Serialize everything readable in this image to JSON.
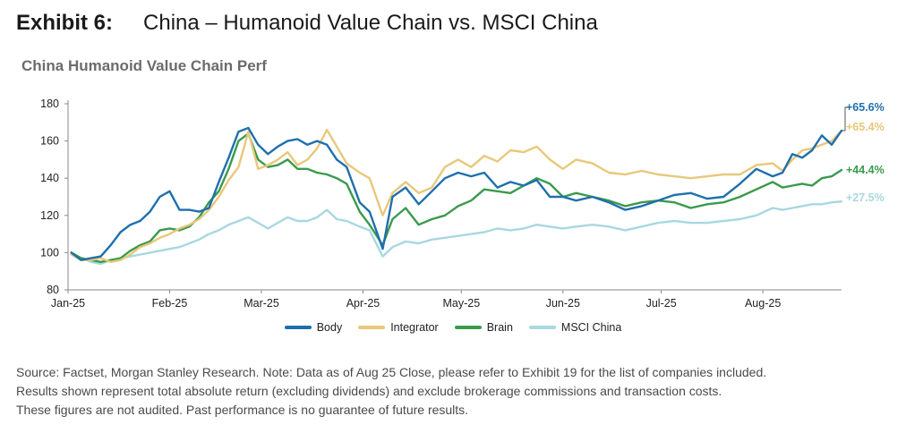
{
  "exhibit": {
    "label": "Exhibit 6:",
    "title": "China – Humanoid Value Chain vs. MSCI China"
  },
  "chart_title": "China Humanoid Value Chain Perf",
  "source_lines": [
    "Source: Factset, Morgan Stanley Research. Note: Data as of Aug 25 Close, please refer to Exhibit 19 for the list of companies included.",
    "Results shown represent total absolute return (excluding dividends) and exclude brokerage commissions and transaction costs.",
    "These figures are not audited. Past performance is no guarantee of future results."
  ],
  "chart_data": {
    "type": "line",
    "title": "China Humanoid Value Chain Perf",
    "xlabel": "",
    "ylabel": "",
    "ylim": [
      80,
      180
    ],
    "yticks": [
      80,
      100,
      120,
      140,
      160,
      180
    ],
    "xlim": [
      "2025-01-01",
      "2025-08-25"
    ],
    "xticks": [
      {
        "label": "Jan-25",
        "date": "2025-01-01"
      },
      {
        "label": "Feb-25",
        "date": "2025-02-01"
      },
      {
        "label": "Mar-25",
        "date": "2025-03-01"
      },
      {
        "label": "Apr-25",
        "date": "2025-04-01"
      },
      {
        "label": "May-25",
        "date": "2025-05-01"
      },
      {
        "label": "Jun-25",
        "date": "2025-06-01"
      },
      {
        "label": "Jul-25",
        "date": "2025-07-01"
      },
      {
        "label": "Aug-25",
        "date": "2025-08-01"
      }
    ],
    "grid": false,
    "legend": "bottom",
    "series": [
      {
        "name": "Body",
        "color": "#1f6fad",
        "end_label": "+65.6%",
        "points": [
          [
            "2025-01-02",
            100
          ],
          [
            "2025-01-05",
            96
          ],
          [
            "2025-01-08",
            97
          ],
          [
            "2025-01-11",
            98
          ],
          [
            "2025-01-14",
            104
          ],
          [
            "2025-01-17",
            111
          ],
          [
            "2025-01-20",
            115
          ],
          [
            "2025-01-23",
            117
          ],
          [
            "2025-01-26",
            122
          ],
          [
            "2025-01-29",
            130
          ],
          [
            "2025-02-01",
            133
          ],
          [
            "2025-02-04",
            123
          ],
          [
            "2025-02-07",
            123
          ],
          [
            "2025-02-10",
            122
          ],
          [
            "2025-02-13",
            124
          ],
          [
            "2025-02-16",
            138
          ],
          [
            "2025-02-19",
            151
          ],
          [
            "2025-02-22",
            165
          ],
          [
            "2025-02-25",
            167
          ],
          [
            "2025-02-28",
            158
          ],
          [
            "2025-03-03",
            153
          ],
          [
            "2025-03-06",
            157
          ],
          [
            "2025-03-09",
            160
          ],
          [
            "2025-03-12",
            161
          ],
          [
            "2025-03-15",
            158
          ],
          [
            "2025-03-18",
            160
          ],
          [
            "2025-03-21",
            158
          ],
          [
            "2025-03-24",
            150
          ],
          [
            "2025-03-27",
            146
          ],
          [
            "2025-03-31",
            127
          ],
          [
            "2025-04-03",
            122
          ],
          [
            "2025-04-07",
            102
          ],
          [
            "2025-04-10",
            130
          ],
          [
            "2025-04-14",
            135
          ],
          [
            "2025-04-18",
            126
          ],
          [
            "2025-04-22",
            133
          ],
          [
            "2025-04-26",
            140
          ],
          [
            "2025-04-30",
            143
          ],
          [
            "2025-05-04",
            141
          ],
          [
            "2025-05-08",
            143
          ],
          [
            "2025-05-12",
            135
          ],
          [
            "2025-05-16",
            138
          ],
          [
            "2025-05-20",
            136
          ],
          [
            "2025-05-24",
            139
          ],
          [
            "2025-05-28",
            130
          ],
          [
            "2025-06-01",
            130
          ],
          [
            "2025-06-05",
            128
          ],
          [
            "2025-06-10",
            130
          ],
          [
            "2025-06-15",
            127
          ],
          [
            "2025-06-20",
            123
          ],
          [
            "2025-06-25",
            125
          ],
          [
            "2025-06-30",
            128
          ],
          [
            "2025-07-05",
            131
          ],
          [
            "2025-07-10",
            132
          ],
          [
            "2025-07-15",
            129
          ],
          [
            "2025-07-20",
            130
          ],
          [
            "2025-07-25",
            137
          ],
          [
            "2025-07-30",
            145
          ],
          [
            "2025-08-04",
            141
          ],
          [
            "2025-08-07",
            143
          ],
          [
            "2025-08-10",
            153
          ],
          [
            "2025-08-13",
            151
          ],
          [
            "2025-08-16",
            155
          ],
          [
            "2025-08-19",
            163
          ],
          [
            "2025-08-22",
            158
          ],
          [
            "2025-08-25",
            165.6
          ]
        ]
      },
      {
        "name": "Integrator",
        "color": "#e8c87a",
        "end_label": "+65.4%",
        "points": [
          [
            "2025-01-02",
            99
          ],
          [
            "2025-01-05",
            96
          ],
          [
            "2025-01-08",
            96
          ],
          [
            "2025-01-11",
            97
          ],
          [
            "2025-01-14",
            95
          ],
          [
            "2025-01-17",
            96
          ],
          [
            "2025-01-20",
            99
          ],
          [
            "2025-01-23",
            103
          ],
          [
            "2025-01-26",
            105
          ],
          [
            "2025-01-29",
            108
          ],
          [
            "2025-02-01",
            110
          ],
          [
            "2025-02-04",
            113
          ],
          [
            "2025-02-07",
            115
          ],
          [
            "2025-02-10",
            118
          ],
          [
            "2025-02-13",
            123
          ],
          [
            "2025-02-16",
            130
          ],
          [
            "2025-02-19",
            139
          ],
          [
            "2025-02-22",
            146
          ],
          [
            "2025-02-25",
            165
          ],
          [
            "2025-02-28",
            145
          ],
          [
            "2025-03-03",
            147
          ],
          [
            "2025-03-06",
            150
          ],
          [
            "2025-03-09",
            154
          ],
          [
            "2025-03-12",
            147
          ],
          [
            "2025-03-15",
            150
          ],
          [
            "2025-03-18",
            156
          ],
          [
            "2025-03-21",
            166
          ],
          [
            "2025-03-24",
            157
          ],
          [
            "2025-03-27",
            148
          ],
          [
            "2025-03-31",
            143
          ],
          [
            "2025-04-03",
            140
          ],
          [
            "2025-04-07",
            120
          ],
          [
            "2025-04-10",
            132
          ],
          [
            "2025-04-14",
            138
          ],
          [
            "2025-04-18",
            132
          ],
          [
            "2025-04-22",
            135
          ],
          [
            "2025-04-26",
            146
          ],
          [
            "2025-04-30",
            150
          ],
          [
            "2025-05-04",
            146
          ],
          [
            "2025-05-08",
            152
          ],
          [
            "2025-05-12",
            149
          ],
          [
            "2025-05-16",
            155
          ],
          [
            "2025-05-20",
            154
          ],
          [
            "2025-05-24",
            157
          ],
          [
            "2025-05-28",
            150
          ],
          [
            "2025-06-01",
            145
          ],
          [
            "2025-06-05",
            150
          ],
          [
            "2025-06-10",
            148
          ],
          [
            "2025-06-15",
            143
          ],
          [
            "2025-06-20",
            142
          ],
          [
            "2025-06-25",
            144
          ],
          [
            "2025-06-30",
            142
          ],
          [
            "2025-07-05",
            141
          ],
          [
            "2025-07-10",
            140
          ],
          [
            "2025-07-15",
            141
          ],
          [
            "2025-07-20",
            142
          ],
          [
            "2025-07-25",
            142
          ],
          [
            "2025-07-30",
            147
          ],
          [
            "2025-08-04",
            148
          ],
          [
            "2025-08-07",
            144
          ],
          [
            "2025-08-10",
            150
          ],
          [
            "2025-08-13",
            155
          ],
          [
            "2025-08-16",
            156
          ],
          [
            "2025-08-19",
            158
          ],
          [
            "2025-08-22",
            160
          ],
          [
            "2025-08-25",
            165.4
          ]
        ]
      },
      {
        "name": "Brain",
        "color": "#3a9a4c",
        "end_label": "+44.4%",
        "points": [
          [
            "2025-01-02",
            100
          ],
          [
            "2025-01-05",
            97
          ],
          [
            "2025-01-08",
            96
          ],
          [
            "2025-01-11",
            95
          ],
          [
            "2025-01-14",
            96
          ],
          [
            "2025-01-17",
            97
          ],
          [
            "2025-01-20",
            101
          ],
          [
            "2025-01-23",
            104
          ],
          [
            "2025-01-26",
            106
          ],
          [
            "2025-01-29",
            112
          ],
          [
            "2025-02-01",
            113
          ],
          [
            "2025-02-04",
            112
          ],
          [
            "2025-02-07",
            114
          ],
          [
            "2025-02-10",
            119
          ],
          [
            "2025-02-13",
            127
          ],
          [
            "2025-02-16",
            133
          ],
          [
            "2025-02-19",
            145
          ],
          [
            "2025-02-22",
            160
          ],
          [
            "2025-02-25",
            164
          ],
          [
            "2025-02-28",
            150
          ],
          [
            "2025-03-03",
            146
          ],
          [
            "2025-03-06",
            147
          ],
          [
            "2025-03-09",
            150
          ],
          [
            "2025-03-12",
            145
          ],
          [
            "2025-03-15",
            145
          ],
          [
            "2025-03-18",
            143
          ],
          [
            "2025-03-21",
            142
          ],
          [
            "2025-03-24",
            140
          ],
          [
            "2025-03-27",
            137
          ],
          [
            "2025-03-31",
            122
          ],
          [
            "2025-04-03",
            115
          ],
          [
            "2025-04-07",
            104
          ],
          [
            "2025-04-10",
            118
          ],
          [
            "2025-04-14",
            124
          ],
          [
            "2025-04-18",
            115
          ],
          [
            "2025-04-22",
            118
          ],
          [
            "2025-04-26",
            120
          ],
          [
            "2025-04-30",
            125
          ],
          [
            "2025-05-04",
            128
          ],
          [
            "2025-05-08",
            134
          ],
          [
            "2025-05-12",
            133
          ],
          [
            "2025-05-16",
            132
          ],
          [
            "2025-05-20",
            136
          ],
          [
            "2025-05-24",
            140
          ],
          [
            "2025-05-28",
            137
          ],
          [
            "2025-06-01",
            130
          ],
          [
            "2025-06-05",
            132
          ],
          [
            "2025-06-10",
            130
          ],
          [
            "2025-06-15",
            128
          ],
          [
            "2025-06-20",
            125
          ],
          [
            "2025-06-25",
            127
          ],
          [
            "2025-06-30",
            128
          ],
          [
            "2025-07-05",
            127
          ],
          [
            "2025-07-10",
            124
          ],
          [
            "2025-07-15",
            126
          ],
          [
            "2025-07-20",
            127
          ],
          [
            "2025-07-25",
            130
          ],
          [
            "2025-07-30",
            134
          ],
          [
            "2025-08-04",
            138
          ],
          [
            "2025-08-07",
            135
          ],
          [
            "2025-08-10",
            136
          ],
          [
            "2025-08-13",
            137
          ],
          [
            "2025-08-16",
            136
          ],
          [
            "2025-08-19",
            140
          ],
          [
            "2025-08-22",
            141
          ],
          [
            "2025-08-25",
            144.4
          ]
        ]
      },
      {
        "name": "MSCI China",
        "color": "#a8d8e0",
        "end_label": "+27.5%",
        "points": [
          [
            "2025-01-02",
            100
          ],
          [
            "2025-01-05",
            97
          ],
          [
            "2025-01-08",
            95
          ],
          [
            "2025-01-11",
            94
          ],
          [
            "2025-01-14",
            96
          ],
          [
            "2025-01-17",
            97
          ],
          [
            "2025-01-20",
            98
          ],
          [
            "2025-01-23",
            99
          ],
          [
            "2025-01-26",
            100
          ],
          [
            "2025-01-29",
            101
          ],
          [
            "2025-02-01",
            102
          ],
          [
            "2025-02-04",
            103
          ],
          [
            "2025-02-07",
            105
          ],
          [
            "2025-02-10",
            107
          ],
          [
            "2025-02-13",
            110
          ],
          [
            "2025-02-16",
            112
          ],
          [
            "2025-02-19",
            115
          ],
          [
            "2025-02-22",
            117
          ],
          [
            "2025-02-25",
            119
          ],
          [
            "2025-02-28",
            116
          ],
          [
            "2025-03-03",
            113
          ],
          [
            "2025-03-06",
            116
          ],
          [
            "2025-03-09",
            119
          ],
          [
            "2025-03-12",
            117
          ],
          [
            "2025-03-15",
            117
          ],
          [
            "2025-03-18",
            119
          ],
          [
            "2025-03-21",
            123
          ],
          [
            "2025-03-24",
            118
          ],
          [
            "2025-03-27",
            117
          ],
          [
            "2025-03-31",
            114
          ],
          [
            "2025-04-03",
            112
          ],
          [
            "2025-04-07",
            98
          ],
          [
            "2025-04-10",
            103
          ],
          [
            "2025-04-14",
            106
          ],
          [
            "2025-04-18",
            105
          ],
          [
            "2025-04-22",
            107
          ],
          [
            "2025-04-26",
            108
          ],
          [
            "2025-04-30",
            109
          ],
          [
            "2025-05-04",
            110
          ],
          [
            "2025-05-08",
            111
          ],
          [
            "2025-05-12",
            113
          ],
          [
            "2025-05-16",
            112
          ],
          [
            "2025-05-20",
            113
          ],
          [
            "2025-05-24",
            115
          ],
          [
            "2025-05-28",
            114
          ],
          [
            "2025-06-01",
            113
          ],
          [
            "2025-06-05",
            114
          ],
          [
            "2025-06-10",
            115
          ],
          [
            "2025-06-15",
            114
          ],
          [
            "2025-06-20",
            112
          ],
          [
            "2025-06-25",
            114
          ],
          [
            "2025-06-30",
            116
          ],
          [
            "2025-07-05",
            117
          ],
          [
            "2025-07-10",
            116
          ],
          [
            "2025-07-15",
            116
          ],
          [
            "2025-07-20",
            117
          ],
          [
            "2025-07-25",
            118
          ],
          [
            "2025-07-30",
            120
          ],
          [
            "2025-08-04",
            124
          ],
          [
            "2025-08-07",
            123
          ],
          [
            "2025-08-10",
            124
          ],
          [
            "2025-08-13",
            125
          ],
          [
            "2025-08-16",
            126
          ],
          [
            "2025-08-19",
            126
          ],
          [
            "2025-08-22",
            127
          ],
          [
            "2025-08-25",
            127.5
          ]
        ]
      }
    ]
  }
}
